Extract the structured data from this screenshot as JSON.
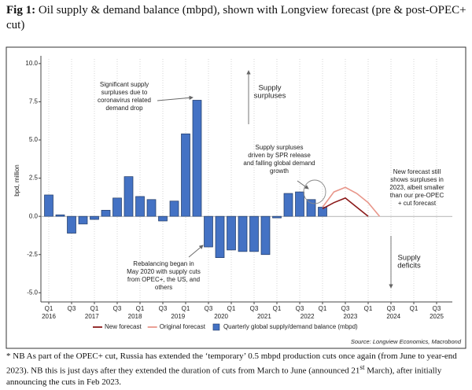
{
  "chart_data": {
    "type": "bar",
    "fig_label": "Fig 1:",
    "title": "Oil supply & demand balance (mbpd), shown with Longview forecast (pre & post-OPEC+ cut)",
    "y_label": "bpd, million",
    "ylim": [
      -5.6,
      10.3
    ],
    "yticks": [
      {
        "value": 10,
        "label": "10.0"
      },
      7.5,
      {
        "value": 5,
        "label": "5.0"
      },
      2.5,
      {
        "value": 0,
        "label": "0.0"
      },
      -2.5,
      {
        "value": -5,
        "label": "-5.0"
      }
    ],
    "xtick_labels": [
      "Q1",
      "Q3",
      "Q1",
      "Q3",
      "Q1",
      "Q3",
      "Q1",
      "Q3",
      "Q1",
      "Q3",
      "Q1",
      "Q3",
      "Q1",
      "Q3",
      "Q1",
      "Q3",
      "Q1",
      "Q3"
    ],
    "years": [
      "2016",
      "2017",
      "2018",
      "2019",
      "2020",
      "2021",
      "2022",
      "2023",
      "2024",
      "2025"
    ],
    "series": [
      {
        "name": "New forecast",
        "type": "line",
        "color": "#8b1a1a",
        "values": [
          null,
          null,
          null,
          null,
          null,
          null,
          null,
          null,
          null,
          null,
          null,
          null,
          null,
          null,
          null,
          null,
          null,
          null,
          null,
          null,
          null,
          null,
          null,
          null,
          0.5,
          0.9,
          1.2,
          0.6,
          0.0,
          null
        ]
      },
      {
        "name": "Original forecast",
        "type": "line",
        "color": "#e8968a",
        "values": [
          null,
          null,
          null,
          null,
          null,
          null,
          null,
          null,
          null,
          null,
          null,
          null,
          null,
          null,
          null,
          null,
          null,
          null,
          null,
          null,
          null,
          null,
          null,
          null,
          0.6,
          1.6,
          1.9,
          1.5,
          0.9,
          0.0
        ]
      },
      {
        "name": "Quarterly global supply/demand balance (mbpd)",
        "type": "bar",
        "color": "#4472c4",
        "values": [
          1.4,
          0.1,
          -1.1,
          -0.5,
          -0.2,
          0.4,
          1.2,
          2.6,
          1.3,
          1.1,
          -0.3,
          1.0,
          5.4,
          7.6,
          -2.0,
          -2.7,
          -2.2,
          -2.3,
          -2.3,
          -2.5,
          -0.1,
          1.5,
          1.6,
          1.1,
          0.6,
          null,
          null,
          null,
          null,
          null
        ]
      }
    ],
    "annotations": [
      [
        "Significant supply",
        "surpluses due to",
        "coronavirus related",
        "demand drop"
      ],
      [
        "Supply",
        "surpluses"
      ],
      [
        "Supply surpluses",
        "driven by SPR release",
        "and falling global demand",
        "growth"
      ],
      [
        "New forecast still",
        "shows surpluses in",
        "2023, albeit smaller",
        "than our pre-OPEC",
        "+ cut forecast"
      ],
      [
        "Rebalancing began in",
        "May 2020 with supply cuts",
        "from OPEC+, the US, and",
        "others"
      ],
      [
        "Supply",
        "deficits"
      ]
    ],
    "source": "Source: Longview Economics, Macrobond",
    "footnote": [
      "* NB As part of the OPEC+ cut, Russia has extended the ‘temporary’ 0.5 mbpd production cuts once again (from June to year-end 2023). NB this is just days after they extended the duration of cuts from March to June (announced 21",
      "st",
      " March), after initially announcing the cuts in Feb 2023."
    ]
  }
}
